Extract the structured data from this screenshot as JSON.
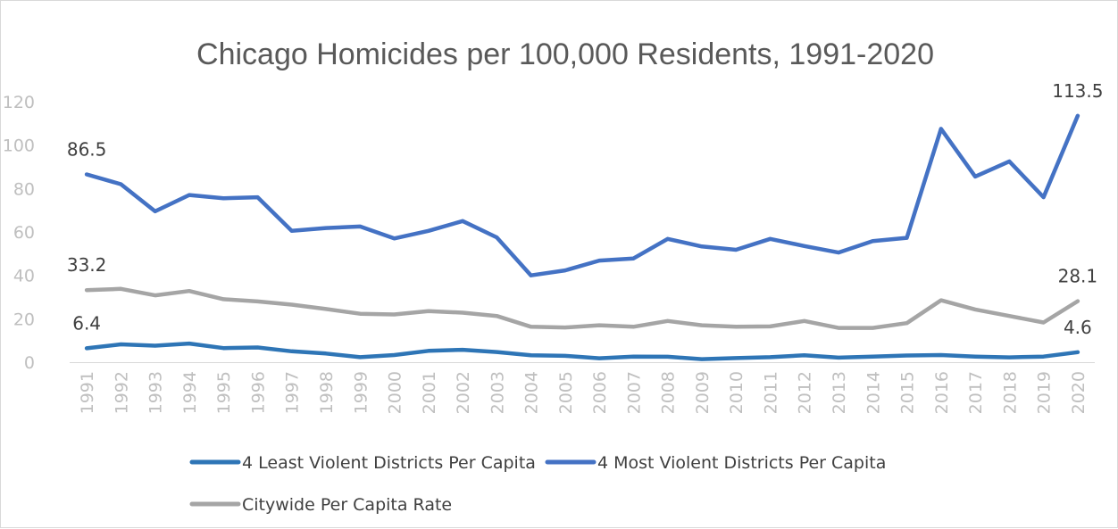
{
  "chart_data": {
    "type": "line",
    "title": "Chicago Homicides per 100,000 Residents, 1991-2020",
    "xlabel": "",
    "ylabel": "",
    "ylim": [
      0,
      120
    ],
    "yticks": [
      "0",
      "20",
      "40",
      "60",
      "80",
      "100",
      "120"
    ],
    "categories": [
      "1991",
      "1992",
      "1993",
      "1994",
      "1995",
      "1996",
      "1997",
      "1998",
      "1999",
      "2000",
      "2001",
      "2002",
      "2003",
      "2004",
      "2005",
      "2006",
      "2007",
      "2008",
      "2009",
      "2010",
      "2011",
      "2012",
      "2013",
      "2014",
      "2015",
      "2016",
      "2017",
      "2018",
      "2019",
      "2020"
    ],
    "grid": false,
    "legend_position": "bottom",
    "series": [
      {
        "name": "4 Least Violent Districts Per Capita",
        "color": "#2e75b6",
        "values": [
          6.4,
          8.2,
          7.6,
          8.6,
          6.5,
          6.8,
          5.0,
          4.0,
          2.3,
          3.3,
          5.2,
          5.7,
          4.7,
          3.2,
          2.9,
          1.8,
          2.6,
          2.5,
          1.4,
          1.9,
          2.3,
          3.2,
          2.1,
          2.6,
          3.1,
          3.3,
          2.6,
          2.2,
          2.6,
          4.6
        ],
        "labels": [
          {
            "index": 0,
            "text": "6.4"
          },
          {
            "index": 29,
            "text": "4.6"
          }
        ]
      },
      {
        "name": "4 Most Violent Districts Per Capita",
        "color": "#4472c4",
        "values": [
          86.5,
          82.0,
          69.5,
          77.0,
          75.5,
          76.0,
          60.5,
          61.8,
          62.5,
          57.0,
          60.5,
          65.0,
          57.5,
          40.0,
          42.3,
          46.8,
          47.8,
          56.8,
          53.3,
          51.8,
          56.8,
          53.5,
          50.5,
          55.8,
          57.3,
          107.5,
          85.5,
          92.5,
          76.0,
          113.5
        ],
        "labels": [
          {
            "index": 0,
            "text": "86.5"
          },
          {
            "index": 29,
            "text": "113.5"
          }
        ]
      },
      {
        "name": "Citywide Per Capita Rate",
        "color": "#a5a5a5",
        "values": [
          33.2,
          33.8,
          30.8,
          32.8,
          29.0,
          28.0,
          26.5,
          24.5,
          22.3,
          22.0,
          23.5,
          22.8,
          21.3,
          16.3,
          16.0,
          17.0,
          16.3,
          19.0,
          17.0,
          16.3,
          16.5,
          19.0,
          15.8,
          15.8,
          18.0,
          28.5,
          24.3,
          21.3,
          18.3,
          28.1
        ],
        "labels": [
          {
            "index": 0,
            "text": "33.2"
          },
          {
            "index": 29,
            "text": "28.1"
          }
        ]
      }
    ]
  }
}
